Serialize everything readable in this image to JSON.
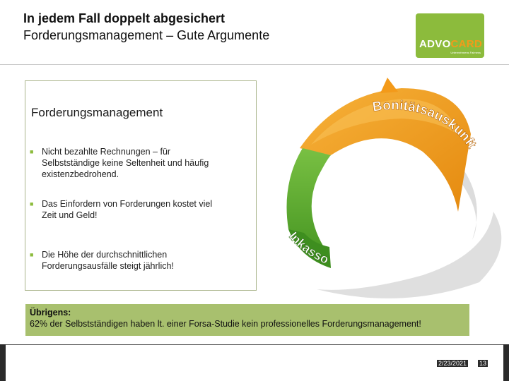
{
  "header": {
    "title_line1": "In jedem Fall doppelt abgesichert",
    "title_line2": "Forderungsmanagement – Gute Argumente"
  },
  "logo": {
    "brand_part1": "ADVO",
    "brand_part2": "CARD",
    "tagline": "Unternehmens Fairness",
    "colors": {
      "background": "#8cbb3c",
      "accent": "#f39a1a"
    }
  },
  "content": {
    "heading": "Forderungsmanagement",
    "bullets": [
      "Nicht bezahlte Rechnungen – für Selbstständige keine Seltenheit und häufig existenzbedrohend.",
      "Das Einfordern von Forderungen kostet viel Zeit und Geld!",
      "Die Höhe der durchschnittlichen Forderungsausfälle steigt jährlich!"
    ]
  },
  "diagram": {
    "arc_top_label": "Bonitätsauskunft",
    "arc_bottom_label": "Inkasso",
    "colors": {
      "top_arc": "#f29a17",
      "bottom_arc": "#5fb02d",
      "shadow": "#d0d0d0"
    }
  },
  "note": {
    "title": "Übrigens:",
    "text": "62% der Selbstständigen haben lt. einer Forsa-Studie kein professionelles Forderungsmanagement!"
  },
  "footer": {
    "date": "2/23/2021",
    "page": "13"
  }
}
